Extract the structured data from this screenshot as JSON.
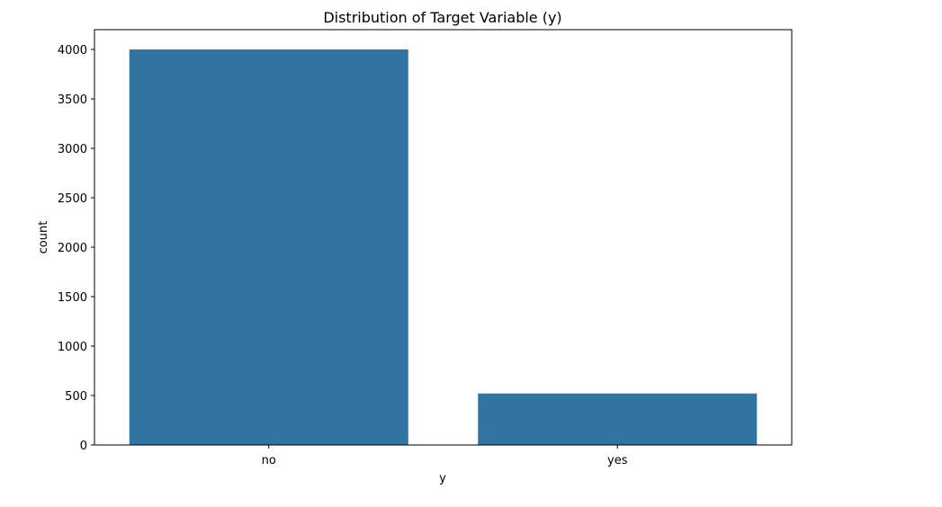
{
  "chart_data": {
    "type": "bar",
    "title": "Distribution of Target Variable (y)",
    "xlabel": "y",
    "ylabel": "count",
    "categories": [
      "no",
      "yes"
    ],
    "values": [
      4000,
      521
    ],
    "ylim": [
      0,
      4200
    ],
    "yticks": [
      0,
      500,
      1000,
      1500,
      2000,
      2500,
      3000,
      3500,
      4000
    ],
    "grid": false,
    "legend": "none",
    "bar_color": "#3274a1"
  }
}
